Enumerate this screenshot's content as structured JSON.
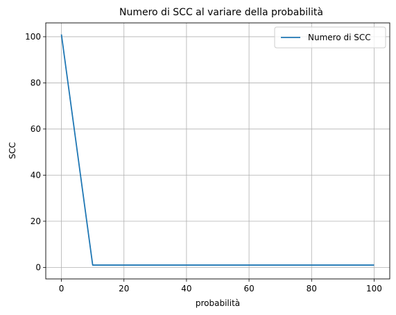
{
  "chart_data": {
    "type": "line",
    "title": "Numero di SCC al variare della probabilità",
    "xlabel": "probabilità",
    "ylabel": "SCC",
    "xlim": [
      -5,
      105
    ],
    "ylim": [
      -5,
      106
    ],
    "xticks": [
      0,
      20,
      40,
      60,
      80,
      100
    ],
    "yticks": [
      0,
      20,
      40,
      60,
      80,
      100
    ],
    "grid": true,
    "legend_position": "top-right",
    "series": [
      {
        "name": "Numero di SCC",
        "color": "#1f77b4",
        "x": [
          0,
          10,
          20,
          30,
          40,
          50,
          60,
          70,
          80,
          90,
          100
        ],
        "y": [
          101,
          1,
          1,
          1,
          1,
          1,
          1,
          1,
          1,
          1,
          1
        ]
      }
    ]
  }
}
